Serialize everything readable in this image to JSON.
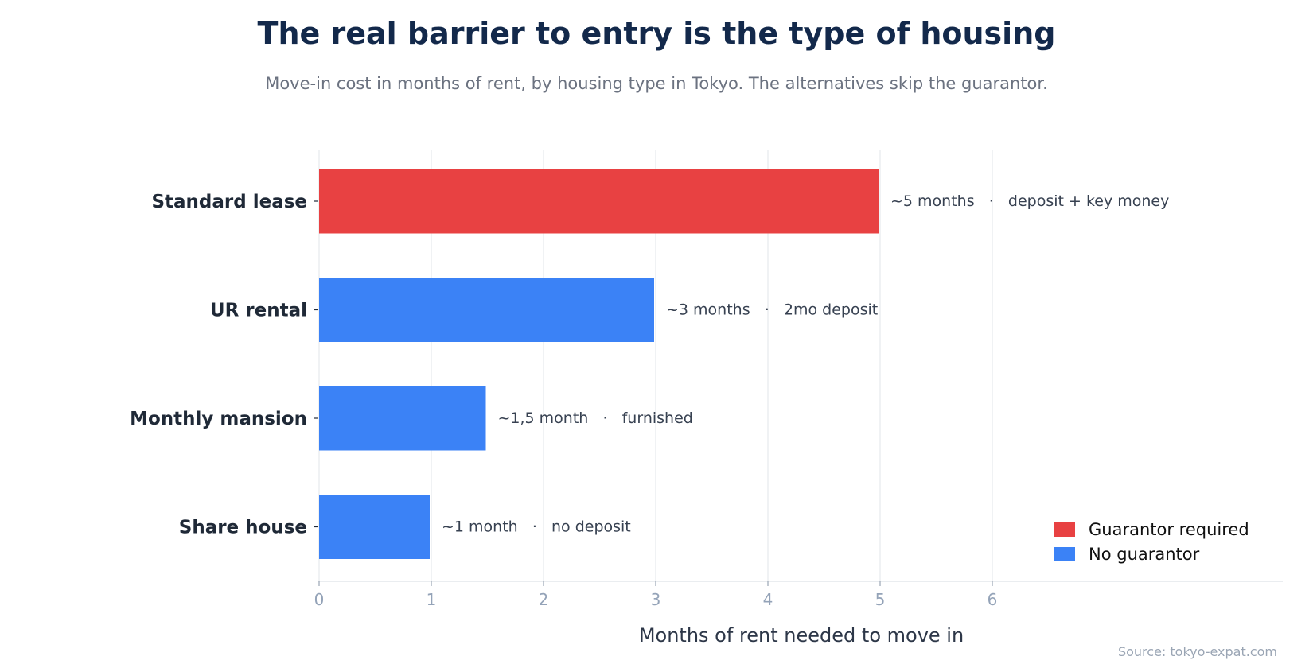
{
  "chart_data": {
    "type": "bar",
    "orientation": "horizontal",
    "title": "The real barrier to entry is the type of housing",
    "subtitle": "Move-in cost in months of rent, by housing type in Tokyo. The alternatives skip the guarantor.",
    "xlabel": "Months of rent needed to move in",
    "ylabel": "",
    "xlim": [
      0,
      6
    ],
    "xticks": [
      "0",
      "1",
      "2",
      "3",
      "4",
      "5",
      "6"
    ],
    "grid": true,
    "legend_position": "bottom-right",
    "categories": [
      "Standard lease",
      "UR rental",
      "Monthly mansion",
      "Share house"
    ],
    "values": [
      5,
      3,
      1.5,
      1
    ],
    "groups": [
      "Guarantor required",
      "No guarantor",
      "No guarantor",
      "No guarantor"
    ],
    "bar_labels": [
      "~5 months   ·   deposit + key money",
      "~3 months   ·   2mo deposit",
      "~1,5 month   ·   furnished",
      "~1 month   ·   no deposit"
    ],
    "legend": [
      {
        "name": "Guarantor required",
        "color": "#e84142"
      },
      {
        "name": "No guarantor",
        "color": "#3b82f6"
      }
    ],
    "source": "Source: tokyo-expat.com"
  }
}
